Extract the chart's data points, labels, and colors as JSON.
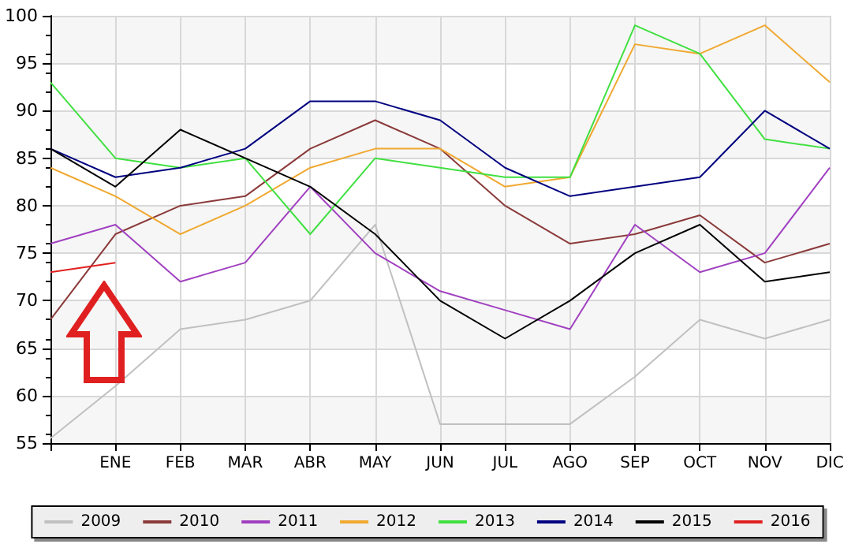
{
  "chart_data": {
    "type": "line",
    "categories": [
      null,
      "ENE",
      "FEB",
      "MAR",
      "ABR",
      "MAY",
      "JUN",
      "JUL",
      "AGO",
      "SEP",
      "OCT",
      "NOV",
      "DIC"
    ],
    "series": [
      {
        "name": "2009",
        "color": "#c0c0c0",
        "values": [
          55.5,
          61,
          67,
          68,
          70,
          78,
          57,
          57,
          57,
          62,
          68,
          66,
          68
        ]
      },
      {
        "name": "2010",
        "color": "#8b3a3a",
        "values": [
          68,
          77,
          80,
          81,
          86,
          89,
          86,
          80,
          76,
          77,
          79,
          74,
          76
        ]
      },
      {
        "name": "2011",
        "color": "#a040c0",
        "values": [
          76,
          78,
          72,
          74,
          82,
          75,
          71,
          69,
          67,
          78,
          73,
          75,
          84
        ]
      },
      {
        "name": "2012",
        "color": "#f0a830",
        "values": [
          84,
          81,
          77,
          80,
          84,
          86,
          86,
          82,
          83,
          97,
          96,
          99,
          93
        ]
      },
      {
        "name": "2013",
        "color": "#40e040",
        "values": [
          93,
          85,
          84,
          85,
          77,
          85,
          84,
          83,
          83,
          99,
          96,
          87,
          86
        ]
      },
      {
        "name": "2014",
        "color": "#000080",
        "values": [
          86,
          83,
          84,
          86,
          91,
          91,
          89,
          84,
          81,
          82,
          83,
          90,
          86
        ]
      },
      {
        "name": "2015",
        "color": "#000000",
        "values": [
          86,
          82,
          88,
          85,
          82,
          77,
          70,
          66,
          70,
          75,
          78,
          72,
          73
        ]
      },
      {
        "name": "2016",
        "color": "#e02020",
        "values": [
          73,
          74,
          null,
          null,
          null,
          null,
          null,
          null,
          null,
          null,
          null,
          null,
          null
        ]
      }
    ],
    "ylim": [
      55,
      100
    ],
    "yticks": [
      55,
      60,
      65,
      70,
      75,
      80,
      85,
      90,
      95,
      100
    ],
    "grid": true,
    "legend": "bottom",
    "marker": "none",
    "line_style": "solid"
  }
}
